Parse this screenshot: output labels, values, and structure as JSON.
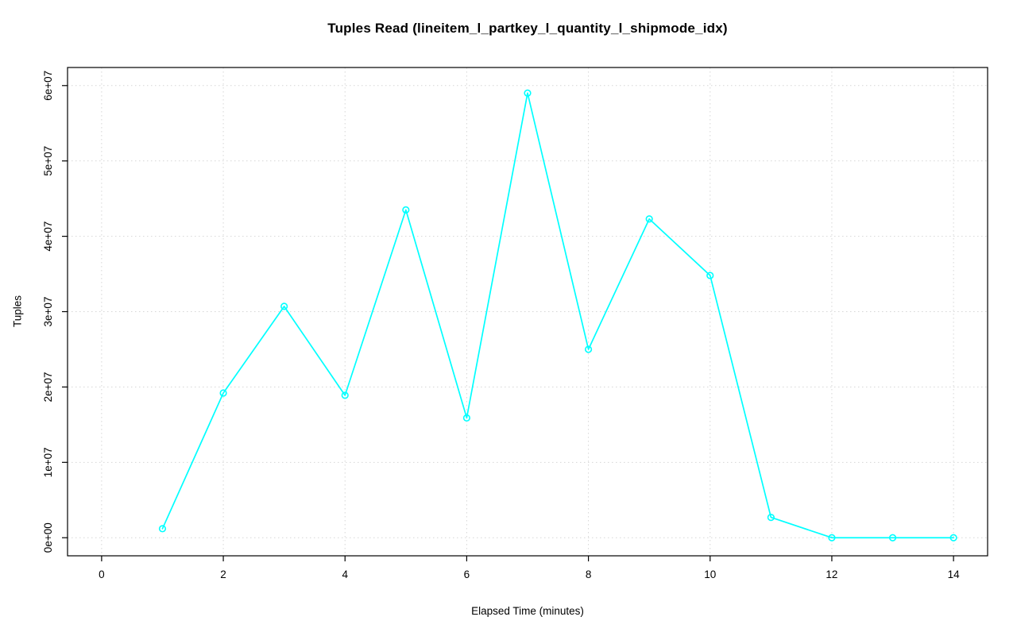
{
  "chart_data": {
    "type": "line",
    "title": "Tuples Read (lineitem_l_partkey_l_quantity_l_shipmode_idx)",
    "xlabel": "Elapsed Time (minutes)",
    "ylabel": "Tuples",
    "x": [
      1,
      2,
      3,
      4,
      5,
      6,
      7,
      8,
      9,
      10,
      11,
      12,
      13,
      14
    ],
    "y": [
      1200000,
      19200000,
      30700000,
      18900000,
      43500000,
      15900000,
      59000000,
      25000000,
      42300000,
      34800000,
      2700000,
      0,
      0,
      0
    ],
    "xlim": [
      0,
      14
    ],
    "ylim": [
      0,
      60000000
    ],
    "xticks": [
      0,
      2,
      4,
      6,
      8,
      10,
      12,
      14
    ],
    "xtick_labels": [
      "0",
      "2",
      "4",
      "6",
      "8",
      "10",
      "12",
      "14"
    ],
    "yticks": [
      0,
      10000000,
      20000000,
      30000000,
      40000000,
      50000000,
      60000000
    ],
    "ytick_labels": [
      "0e+00",
      "1e+07",
      "2e+07",
      "3e+07",
      "4e+07",
      "5e+07",
      "6e+07"
    ],
    "grid": true,
    "grid_style": "dotted",
    "legend": "none",
    "line_color": "#00ffff",
    "marker": "open-circle",
    "grid_color": "#d6d6d6",
    "axis_color": "#000000",
    "background": "#ffffff"
  }
}
